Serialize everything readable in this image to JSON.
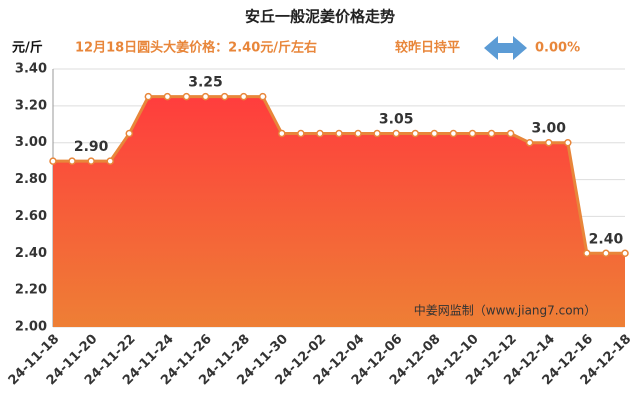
{
  "chart_data": {
    "type": "area",
    "title": "安丘一般泥姜价格走势",
    "y_unit": "元/斤",
    "subtitle": "12月18日圆头大姜价格：2.40元/斤左右",
    "change_text": "较昨日持平",
    "change_value": "0.00%",
    "watermark": "中姜网监制（www.jiang7.com）",
    "categories": [
      "24-11-18",
      null,
      "24-11-20",
      null,
      "24-11-22",
      null,
      "24-11-24",
      null,
      "24-11-26",
      null,
      "24-11-28",
      null,
      "24-11-30",
      null,
      "24-12-02",
      null,
      "24-12-04",
      null,
      "24-12-06",
      null,
      "24-12-08",
      null,
      "24-12-10",
      null,
      "24-12-12",
      null,
      "24-12-14",
      null,
      "24-12-16",
      null,
      "24-12-18"
    ],
    "values": [
      2.9,
      2.9,
      2.9,
      2.9,
      3.05,
      3.25,
      3.25,
      3.25,
      3.25,
      3.25,
      3.25,
      3.25,
      3.05,
      3.05,
      3.05,
      3.05,
      3.05,
      3.05,
      3.05,
      3.05,
      3.05,
      3.05,
      3.05,
      3.05,
      3.05,
      3.0,
      3.0,
      3.0,
      2.4,
      2.4,
      2.4
    ],
    "value_labels": [
      null,
      null,
      "2.90",
      null,
      null,
      null,
      null,
      null,
      "3.25",
      null,
      null,
      null,
      null,
      null,
      null,
      null,
      null,
      null,
      "3.05",
      null,
      null,
      null,
      null,
      null,
      null,
      null,
      "3.00",
      null,
      null,
      "2.40",
      null
    ],
    "color": "#e8863a",
    "fill_top": "#ff3d3d",
    "fill_bottom": "#ee7f35",
    "ylim": [
      2.0,
      3.4
    ],
    "yticks": [
      {
        "value": 2.0,
        "label": "2.00"
      },
      {
        "value": 2.2,
        "label": "2.20"
      },
      {
        "value": 2.4,
        "label": "2.40"
      },
      {
        "value": 2.6,
        "label": "2.60"
      },
      {
        "value": 2.8,
        "label": "2.80"
      },
      {
        "value": 3.0,
        "label": "3.00"
      },
      {
        "value": 3.2,
        "label": "3.20"
      },
      {
        "value": 3.4,
        "label": "3.40"
      }
    ],
    "grid": true
  }
}
